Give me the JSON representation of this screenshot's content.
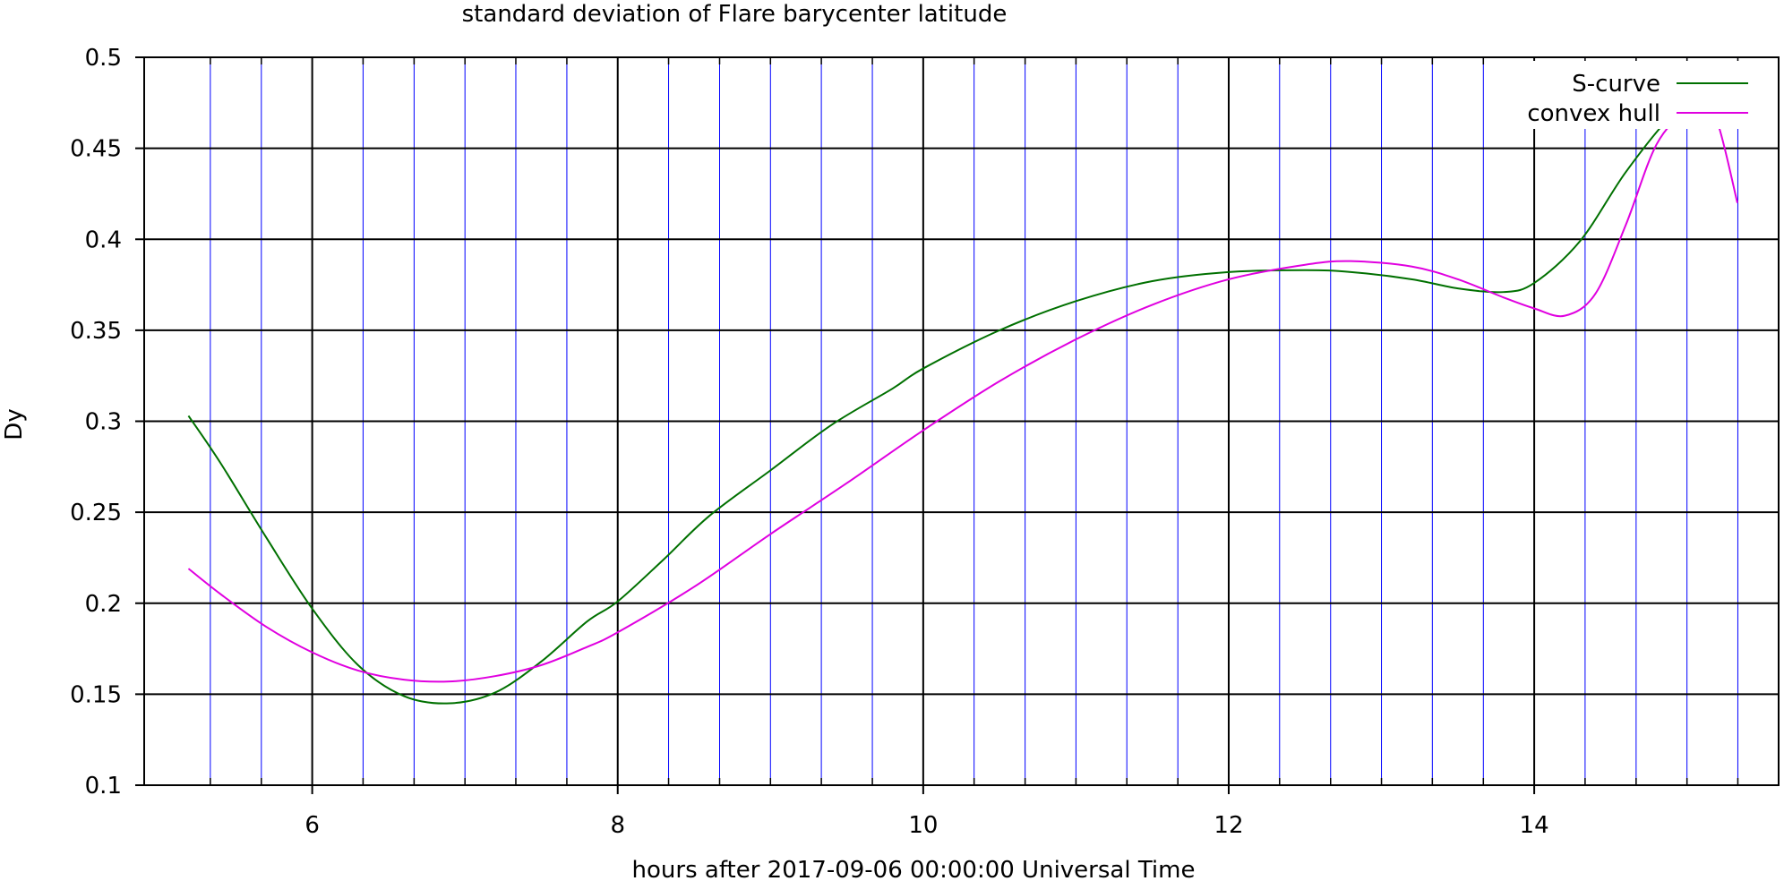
{
  "chart_data": {
    "type": "line",
    "title": "standard deviation of Flare barycenter latitude",
    "xlabel": "hours after 2017-09-06 00:00:00 Universal Time",
    "ylabel": "Dy",
    "xlim": [
      4.9,
      15.6
    ],
    "ylim": [
      0.1,
      0.5
    ],
    "x_ticks": [
      6,
      8,
      10,
      12,
      14
    ],
    "x_tick_labels": [
      "6",
      "8",
      "10",
      "12",
      "14"
    ],
    "y_ticks": [
      0.1,
      0.15,
      0.2,
      0.25,
      0.3,
      0.35,
      0.4,
      0.45,
      0.5
    ],
    "y_tick_labels": [
      "0.1",
      "0.15",
      "0.2",
      "0.25",
      "0.3",
      "0.35",
      "0.4",
      "0.45",
      "0.5"
    ],
    "x_minor_gridlines": [
      5.333,
      5.667,
      6.333,
      6.667,
      7.0,
      7.333,
      7.667,
      8.333,
      8.667,
      9.0,
      9.333,
      9.667,
      10.333,
      10.667,
      11.0,
      11.333,
      11.667,
      12.333,
      12.667,
      13.0,
      13.333,
      13.667,
      14.333,
      14.667,
      15.0,
      15.333
    ],
    "grid": true,
    "legend_position": "top-right",
    "colors": {
      "major_grid": "#000000",
      "minor_grid": "#0000ff",
      "s_curve": "#007000",
      "convex_hull": "#e000e0"
    },
    "series": [
      {
        "name": "S-curve",
        "color": "#007000",
        "x": [
          5.19,
          5.4,
          5.7,
          6.0,
          6.3,
          6.6,
          6.9,
          7.2,
          7.5,
          7.8,
          8.0,
          8.3,
          8.6,
          9.0,
          9.4,
          9.8,
          10.0,
          10.5,
          11.0,
          11.5,
          12.0,
          12.5,
          12.8,
          13.2,
          13.5,
          13.8,
          14.0,
          14.3,
          14.6,
          14.9,
          15.1,
          15.2,
          15.33
        ],
        "y": [
          0.303,
          0.277,
          0.236,
          0.197,
          0.166,
          0.149,
          0.145,
          0.151,
          0.168,
          0.19,
          0.201,
          0.224,
          0.248,
          0.273,
          0.298,
          0.318,
          0.329,
          0.35,
          0.366,
          0.377,
          0.382,
          0.383,
          0.382,
          0.378,
          0.373,
          0.371,
          0.376,
          0.399,
          0.437,
          0.468,
          0.477,
          0.478,
          0.471
        ]
      },
      {
        "name": "convex hull",
        "color": "#e000e0",
        "x": [
          5.19,
          5.4,
          5.7,
          6.0,
          6.3,
          6.6,
          6.9,
          7.2,
          7.5,
          7.8,
          8.0,
          8.5,
          9.0,
          9.5,
          10.0,
          10.5,
          11.0,
          11.5,
          12.0,
          12.5,
          12.8,
          13.2,
          13.5,
          13.8,
          14.0,
          14.2,
          14.4,
          14.6,
          14.8,
          15.0,
          15.1,
          15.2,
          15.33
        ],
        "y": [
          0.219,
          0.205,
          0.187,
          0.173,
          0.163,
          0.158,
          0.157,
          0.16,
          0.166,
          0.176,
          0.184,
          0.209,
          0.238,
          0.266,
          0.295,
          0.322,
          0.345,
          0.364,
          0.378,
          0.386,
          0.388,
          0.385,
          0.378,
          0.368,
          0.362,
          0.358,
          0.37,
          0.408,
          0.452,
          0.471,
          0.471,
          0.464,
          0.42
        ]
      }
    ]
  }
}
